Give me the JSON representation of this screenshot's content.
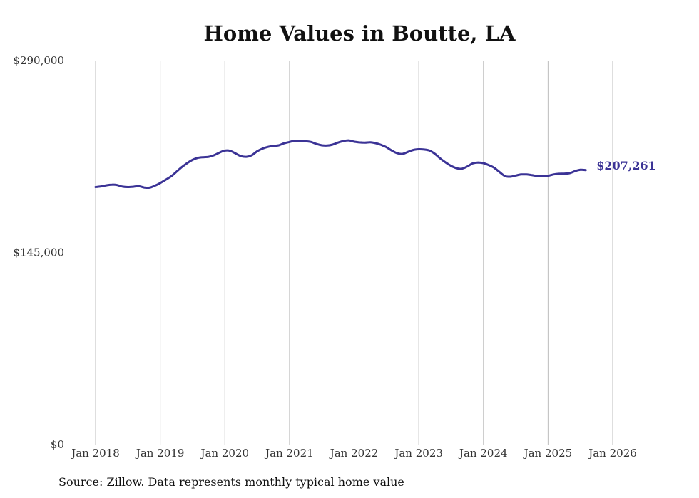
{
  "chart_data": {
    "type": "line",
    "title": "Home Values in Boutte, LA",
    "source": "Source: Zillow. Data represents monthly typical home value",
    "xlabel": "",
    "ylabel": "",
    "ylim": [
      0,
      290000
    ],
    "y_ticks": [
      "$0",
      "$145,000",
      "$290,000"
    ],
    "y_tick_values": [
      0,
      145000,
      290000
    ],
    "x_ticks": [
      "Jan 2018",
      "Jan 2019",
      "Jan 2020",
      "Jan 2021",
      "Jan 2022",
      "Jan 2023",
      "Jan 2024",
      "Jan 2025",
      "Jan 2026"
    ],
    "x_tick_positions": [
      0,
      12,
      24,
      36,
      48,
      60,
      72,
      84,
      96
    ],
    "grid": "vertical",
    "end_label": "$207,261",
    "line_color": "#3b3396",
    "series": [
      {
        "name": "Typical home value",
        "x_start": "Jan 2018",
        "values": [
          194500,
          195000,
          195800,
          196300,
          196000,
          194800,
          194500,
          194700,
          195200,
          194200,
          194000,
          195500,
          197500,
          200000,
          202500,
          206000,
          209500,
          212500,
          215000,
          216500,
          217000,
          217300,
          218500,
          220500,
          222000,
          221800,
          219800,
          217800,
          217300,
          218500,
          221500,
          223500,
          224800,
          225500,
          226000,
          227500,
          228500,
          229300,
          229200,
          229000,
          228500,
          227000,
          226000,
          225800,
          226500,
          228000,
          229200,
          229700,
          228700,
          228200,
          228000,
          228300,
          227600,
          226300,
          224500,
          222000,
          220000,
          219500,
          221000,
          222500,
          223000,
          222800,
          222000,
          219500,
          216000,
          213000,
          210500,
          208700,
          208300,
          210000,
          212300,
          213000,
          212500,
          211000,
          209000,
          205800,
          202800,
          202300,
          203200,
          204000,
          204000,
          203500,
          202800,
          202600,
          203000,
          204000,
          204500,
          204600,
          205000,
          206500,
          207500,
          207261
        ]
      }
    ]
  }
}
